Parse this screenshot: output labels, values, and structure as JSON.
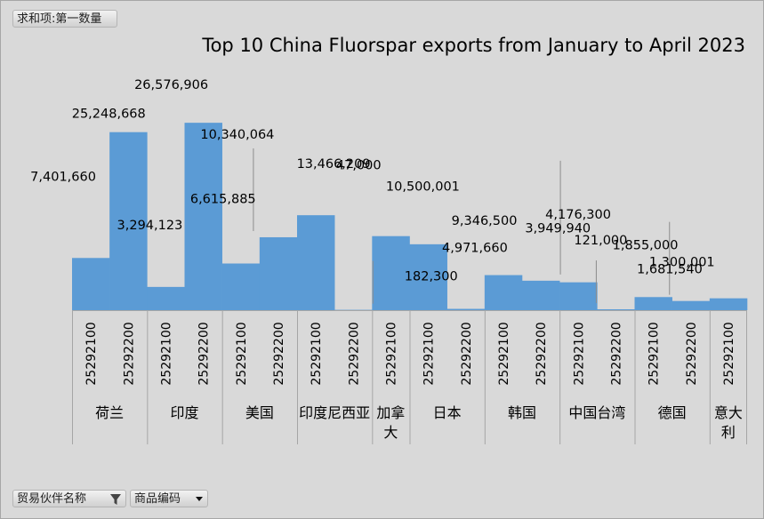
{
  "value_field_label": "求和项:第一数量",
  "filter_fields": [
    {
      "label": "贸易伙伴名称",
      "icon": "filter-funnel-icon"
    },
    {
      "label": "商品编码",
      "icon": "dropdown-arrow-icon"
    }
  ],
  "colors": {
    "bar": "#5b9bd5",
    "background": "#d9d9d9",
    "leader": "#8c8c8c",
    "grid": "#a6a6a6"
  },
  "chart_data": {
    "type": "bar",
    "title": "Top 10 China Fluorspar exports from January to April 2023",
    "legend": "none",
    "grid": false,
    "groups": [
      {
        "name": "荷兰",
        "items": [
          {
            "code": "25292100",
            "value": 7401660,
            "label": "7,401,660"
          },
          {
            "code": "25292200",
            "value": 25248668,
            "label": "25,248,668"
          }
        ]
      },
      {
        "name": "印度",
        "items": [
          {
            "code": "25292100",
            "value": 3294123,
            "label": "3,294,123"
          },
          {
            "code": "25292200",
            "value": 26576906,
            "label": "26,576,906"
          }
        ]
      },
      {
        "name": "美国",
        "items": [
          {
            "code": "25292100",
            "value": 6615885,
            "label": "6,615,885"
          },
          {
            "code": "25292200",
            "value": 10340064,
            "label": "10,340,064"
          }
        ]
      },
      {
        "name": "印度尼西亚",
        "items": [
          {
            "code": "25292100",
            "value": 13466209,
            "label": "13,466,209"
          },
          {
            "code": "25292200",
            "value": 47000,
            "label": "47,000"
          }
        ]
      },
      {
        "name": "加拿大",
        "items": [
          {
            "code": "25292100",
            "value": 10500001,
            "label": "10,500,001"
          }
        ]
      },
      {
        "name": "日本",
        "items": [
          {
            "code": "25292100",
            "value": 9346500,
            "label": "9,346,500"
          },
          {
            "code": "25292200",
            "value": 182300,
            "label": "182,300"
          }
        ]
      },
      {
        "name": "韩国",
        "items": [
          {
            "code": "25292100",
            "value": 4971660,
            "label": "4,971,660"
          },
          {
            "code": "25292200",
            "value": 4176300,
            "label": "4,176,300"
          }
        ]
      },
      {
        "name": "中国台湾",
        "items": [
          {
            "code": "25292100",
            "value": 3949940,
            "label": "3,949,940"
          },
          {
            "code": "25292200",
            "value": 121000,
            "label": "121,000"
          }
        ]
      },
      {
        "name": "德国",
        "items": [
          {
            "code": "25292100",
            "value": 1855000,
            "label": "1,855,000"
          },
          {
            "code": "25292200",
            "value": 1300001,
            "label": "1,300,001"
          }
        ]
      },
      {
        "name": "意大利",
        "items": [
          {
            "code": "25292100",
            "value": 1681540,
            "label": "1,681,540"
          }
        ]
      }
    ]
  }
}
